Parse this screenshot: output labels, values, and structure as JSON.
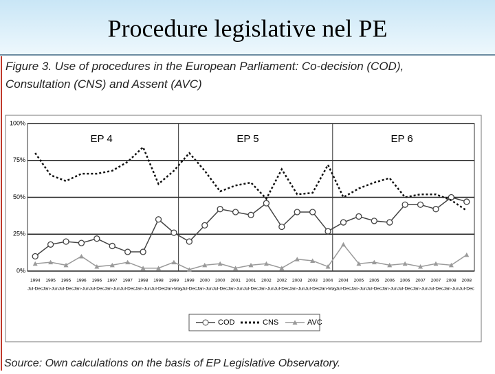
{
  "slide_title": "Procedure legislative nel PE",
  "caption": "Figure 3. Use of procedures in the European Parliament: Co-decision (COD), Consultation (CNS) and Assent (AVC)",
  "source": "Source: Own calculations on the basis of EP Legislative Observatory.",
  "chart_data": {
    "type": "line",
    "categories": [
      {
        "year": "1994",
        "period": "Jul-Dec"
      },
      {
        "year": "1995",
        "period": "Jan-Jun"
      },
      {
        "year": "1995",
        "period": "Jul-Dec"
      },
      {
        "year": "1996",
        "period": "Jan-Jun"
      },
      {
        "year": "1996",
        "period": "Jul-Dec"
      },
      {
        "year": "1997",
        "period": "Jan-Jun"
      },
      {
        "year": "1997",
        "period": "Jul-Dec"
      },
      {
        "year": "1998",
        "period": "Jan-Jun"
      },
      {
        "year": "1998",
        "period": "Jul-Dec"
      },
      {
        "year": "1999",
        "period": "Jan-May"
      },
      {
        "year": "1999",
        "period": "Jul-Dec"
      },
      {
        "year": "2000",
        "period": "Jan-Jun"
      },
      {
        "year": "2000",
        "period": "Jul-Dec"
      },
      {
        "year": "2001",
        "period": "Jan-Jun"
      },
      {
        "year": "2001",
        "period": "Jul-Dec"
      },
      {
        "year": "2002",
        "period": "Jan-Jun"
      },
      {
        "year": "2002",
        "period": "Jul-Dec"
      },
      {
        "year": "2003",
        "period": "Jan-Jun"
      },
      {
        "year": "2003",
        "period": "Jul-Dec"
      },
      {
        "year": "2004",
        "period": "Jan-May"
      },
      {
        "year": "2004",
        "period": "Jul-Dec"
      },
      {
        "year": "2005",
        "period": "Jan-Jun"
      },
      {
        "year": "2005",
        "period": "Jul-Dec"
      },
      {
        "year": "2006",
        "period": "Jan-Jun"
      },
      {
        "year": "2006",
        "period": "Jul-Dec"
      },
      {
        "year": "2007",
        "period": "Jan-Jun"
      },
      {
        "year": "2007",
        "period": "Jul-Dec"
      },
      {
        "year": "2008",
        "period": "Jan-Jun"
      },
      {
        "year": "2008",
        "period": "Jul-Dec"
      }
    ],
    "series": [
      {
        "name": "COD",
        "color": "#444444",
        "style": "solid-circle",
        "values": [
          10,
          18,
          20,
          19,
          22,
          17,
          13,
          13,
          35,
          26,
          20,
          31,
          42,
          40,
          38,
          46,
          30,
          40,
          40,
          27,
          33,
          37,
          34,
          33,
          45,
          45,
          42,
          50,
          47
        ]
      },
      {
        "name": "CNS",
        "color": "#111111",
        "style": "dotted",
        "values": [
          80,
          65,
          61,
          66,
          66,
          68,
          74,
          84,
          59,
          68,
          80,
          68,
          54,
          58,
          60,
          49,
          69,
          52,
          53,
          72,
          50,
          56,
          60,
          63,
          50,
          52,
          52,
          48,
          41
        ]
      },
      {
        "name": "AVC",
        "color": "#9a9a9a",
        "style": "solid-triangle",
        "values": [
          5,
          6,
          4,
          10,
          3,
          4,
          6,
          2,
          2,
          6,
          1,
          4,
          5,
          2,
          4,
          5,
          2,
          8,
          7,
          3,
          18,
          5,
          6,
          4,
          5,
          3,
          5,
          4,
          11
        ]
      }
    ],
    "annotations": [
      "EP 4",
      "EP 5",
      "EP 6"
    ],
    "ylim": [
      0,
      100
    ],
    "yticks": [
      {
        "value": 0,
        "label": "0%"
      },
      {
        "value": 25,
        "label": "25%"
      },
      {
        "value": 50,
        "label": "50%"
      },
      {
        "value": 75,
        "label": "75%"
      },
      {
        "value": 100,
        "label": "100%"
      }
    ],
    "grid": true
  }
}
